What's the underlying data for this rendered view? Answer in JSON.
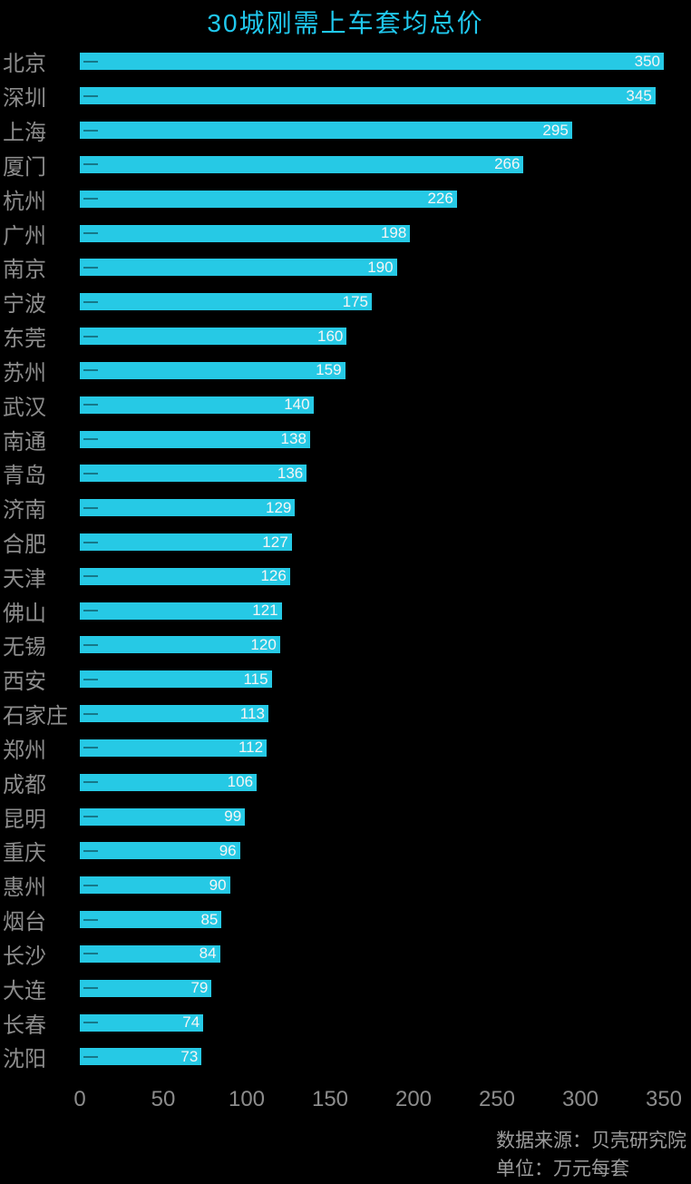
{
  "title": "30城刚需上车套均总价",
  "chart_data": {
    "type": "bar",
    "orientation": "horizontal",
    "title": "30城刚需上车套均总价",
    "categories": [
      "北京",
      "深圳",
      "上海",
      "厦门",
      "杭州",
      "广州",
      "南京",
      "宁波",
      "东莞",
      "苏州",
      "武汉",
      "南通",
      "青岛",
      "济南",
      "合肥",
      "天津",
      "佛山",
      "无锡",
      "西安",
      "石家庄",
      "郑州",
      "成都",
      "昆明",
      "重庆",
      "惠州",
      "烟台",
      "长沙",
      "大连",
      "长春",
      "沈阳"
    ],
    "values": [
      350,
      345,
      295,
      266,
      226,
      198,
      190,
      175,
      160,
      159,
      140,
      138,
      136,
      129,
      127,
      126,
      121,
      120,
      115,
      113,
      112,
      106,
      99,
      96,
      90,
      85,
      84,
      79,
      74,
      73
    ],
    "xlabel": "",
    "ylabel": "",
    "xlim": [
      0,
      350
    ],
    "x_ticks": [
      0,
      50,
      100,
      150,
      200,
      250,
      300,
      350
    ],
    "grid": false,
    "legend": false,
    "value_labels": "inside-end"
  },
  "footer": {
    "source": "数据来源：贝壳研究院",
    "unit": "单位：万元每套"
  },
  "colors": {
    "background": "#000000",
    "bar": "#26c9e5",
    "title": "#20c8ee",
    "value_label": "#f5f5f5",
    "category_label": "#8c8c8c",
    "axis_label": "#8c8c8c",
    "footer_text": "#9c9c9c"
  }
}
